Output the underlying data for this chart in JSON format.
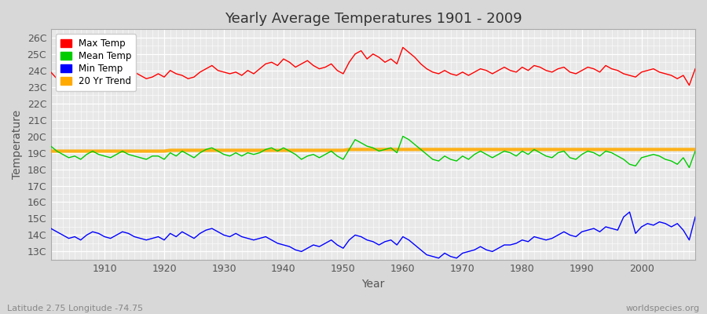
{
  "title": "Yearly Average Temperatures 1901 - 2009",
  "xlabel": "Year",
  "ylabel": "Temperature",
  "lat_lon_label": "Latitude 2.75 Longitude -74.75",
  "watermark": "worldspecies.org",
  "years": [
    1901,
    1902,
    1903,
    1904,
    1905,
    1906,
    1907,
    1908,
    1909,
    1910,
    1911,
    1912,
    1913,
    1914,
    1915,
    1916,
    1917,
    1918,
    1919,
    1920,
    1921,
    1922,
    1923,
    1924,
    1925,
    1926,
    1927,
    1928,
    1929,
    1930,
    1931,
    1932,
    1933,
    1934,
    1935,
    1936,
    1937,
    1938,
    1939,
    1940,
    1941,
    1942,
    1943,
    1944,
    1945,
    1946,
    1947,
    1948,
    1949,
    1950,
    1951,
    1952,
    1953,
    1954,
    1955,
    1956,
    1957,
    1958,
    1959,
    1960,
    1961,
    1962,
    1963,
    1964,
    1965,
    1966,
    1967,
    1968,
    1969,
    1970,
    1971,
    1972,
    1973,
    1974,
    1975,
    1976,
    1977,
    1978,
    1979,
    1980,
    1981,
    1982,
    1983,
    1984,
    1985,
    1986,
    1987,
    1988,
    1989,
    1990,
    1991,
    1992,
    1993,
    1994,
    1995,
    1996,
    1997,
    1998,
    1999,
    2000,
    2001,
    2002,
    2003,
    2004,
    2005,
    2006,
    2007,
    2008,
    2009
  ],
  "max_temp": [
    23.9,
    23.5,
    23.3,
    23.4,
    23.2,
    23.3,
    23.4,
    23.6,
    23.7,
    23.5,
    23.3,
    23.4,
    23.6,
    23.8,
    23.9,
    23.7,
    23.5,
    23.6,
    23.8,
    23.6,
    24.0,
    23.8,
    23.7,
    23.5,
    23.6,
    23.9,
    24.1,
    24.3,
    24.0,
    23.9,
    23.8,
    23.9,
    23.7,
    24.0,
    23.8,
    24.1,
    24.4,
    24.5,
    24.3,
    24.7,
    24.5,
    24.2,
    24.4,
    24.6,
    24.3,
    24.1,
    24.2,
    24.4,
    24.0,
    23.8,
    24.5,
    25.0,
    25.2,
    24.7,
    25.0,
    24.8,
    24.5,
    24.7,
    24.4,
    25.4,
    25.1,
    24.8,
    24.4,
    24.1,
    23.9,
    23.8,
    24.0,
    23.8,
    23.7,
    23.9,
    23.7,
    23.9,
    24.1,
    24.0,
    23.8,
    24.0,
    24.2,
    24.0,
    23.9,
    24.2,
    24.0,
    24.3,
    24.2,
    24.0,
    23.9,
    24.1,
    24.2,
    23.9,
    23.8,
    24.0,
    24.2,
    24.1,
    23.9,
    24.3,
    24.1,
    24.0,
    23.8,
    23.7,
    23.6,
    23.9,
    24.0,
    24.1,
    23.9,
    23.8,
    23.7,
    23.5,
    23.7,
    23.1,
    24.1
  ],
  "mean_temp": [
    19.4,
    19.1,
    18.9,
    18.7,
    18.8,
    18.6,
    18.9,
    19.1,
    18.9,
    18.8,
    18.7,
    18.9,
    19.1,
    18.9,
    18.8,
    18.7,
    18.6,
    18.8,
    18.8,
    18.6,
    19.0,
    18.8,
    19.1,
    18.9,
    18.7,
    19.0,
    19.2,
    19.3,
    19.1,
    18.9,
    18.8,
    19.0,
    18.8,
    19.0,
    18.9,
    19.0,
    19.2,
    19.3,
    19.1,
    19.3,
    19.1,
    18.9,
    18.6,
    18.8,
    18.9,
    18.7,
    18.9,
    19.1,
    18.8,
    18.6,
    19.2,
    19.8,
    19.6,
    19.4,
    19.3,
    19.1,
    19.2,
    19.3,
    19.0,
    20.0,
    19.8,
    19.5,
    19.2,
    18.9,
    18.6,
    18.5,
    18.8,
    18.6,
    18.5,
    18.8,
    18.6,
    18.9,
    19.1,
    18.9,
    18.7,
    18.9,
    19.1,
    19.0,
    18.8,
    19.1,
    18.9,
    19.2,
    19.0,
    18.8,
    18.7,
    19.0,
    19.1,
    18.7,
    18.6,
    18.9,
    19.1,
    19.0,
    18.8,
    19.1,
    19.0,
    18.8,
    18.6,
    18.3,
    18.2,
    18.7,
    18.8,
    18.9,
    18.8,
    18.6,
    18.5,
    18.3,
    18.7,
    18.1,
    19.1
  ],
  "min_temp": [
    14.4,
    14.2,
    14.0,
    13.8,
    13.9,
    13.7,
    14.0,
    14.2,
    14.1,
    13.9,
    13.8,
    14.0,
    14.2,
    14.1,
    13.9,
    13.8,
    13.7,
    13.8,
    13.9,
    13.7,
    14.1,
    13.9,
    14.2,
    14.0,
    13.8,
    14.1,
    14.3,
    14.4,
    14.2,
    14.0,
    13.9,
    14.1,
    13.9,
    13.8,
    13.7,
    13.8,
    13.9,
    13.7,
    13.5,
    13.4,
    13.3,
    13.1,
    13.0,
    13.2,
    13.4,
    13.3,
    13.5,
    13.7,
    13.4,
    13.2,
    13.7,
    14.0,
    13.9,
    13.7,
    13.6,
    13.4,
    13.6,
    13.7,
    13.4,
    13.9,
    13.7,
    13.4,
    13.1,
    12.8,
    12.7,
    12.6,
    12.9,
    12.7,
    12.6,
    12.9,
    13.0,
    13.1,
    13.3,
    13.1,
    13.0,
    13.2,
    13.4,
    13.4,
    13.5,
    13.7,
    13.6,
    13.9,
    13.8,
    13.7,
    13.8,
    14.0,
    14.2,
    14.0,
    13.9,
    14.2,
    14.3,
    14.4,
    14.2,
    14.5,
    14.4,
    14.3,
    15.1,
    15.4,
    14.1,
    14.5,
    14.7,
    14.6,
    14.8,
    14.7,
    14.5,
    14.7,
    14.3,
    13.7,
    15.1
  ],
  "trend_temp": [
    19.1,
    19.1,
    19.1,
    19.1,
    19.1,
    19.1,
    19.1,
    19.1,
    19.1,
    19.1,
    19.1,
    19.1,
    19.1,
    19.1,
    19.1,
    19.1,
    19.1,
    19.1,
    19.1,
    19.1,
    19.15,
    19.15,
    19.15,
    19.15,
    19.15,
    19.15,
    19.15,
    19.15,
    19.15,
    19.15,
    19.15,
    19.15,
    19.15,
    19.15,
    19.15,
    19.15,
    19.15,
    19.15,
    19.15,
    19.15,
    19.15,
    19.15,
    19.15,
    19.15,
    19.15,
    19.15,
    19.15,
    19.15,
    19.15,
    19.15,
    19.2,
    19.2,
    19.2,
    19.2,
    19.2,
    19.2,
    19.2,
    19.2,
    19.2,
    19.2,
    19.2,
    19.2,
    19.2,
    19.2,
    19.2,
    19.2,
    19.2,
    19.2,
    19.2,
    19.2,
    19.2,
    19.2,
    19.2,
    19.2,
    19.2,
    19.2,
    19.2,
    19.2,
    19.2,
    19.2,
    19.2,
    19.2,
    19.2,
    19.2,
    19.2,
    19.2,
    19.2,
    19.2,
    19.2,
    19.2,
    19.2,
    19.2,
    19.2,
    19.2,
    19.2,
    19.2,
    19.2,
    19.2,
    19.2,
    19.2,
    19.2,
    19.2,
    19.2,
    19.2,
    19.2,
    19.2,
    19.2,
    19.2,
    19.2
  ],
  "max_color": "#ff0000",
  "mean_color": "#00cc00",
  "min_color": "#0000ff",
  "trend_color": "#ffaa00",
  "fig_bg_color": "#d8d8d8",
  "plot_bg_color": "#e8e8e8",
  "grid_major_color": "#ffffff",
  "grid_minor_color": "#ffffff",
  "tick_color": "#555555",
  "title_color": "#333333",
  "label_color": "#555555",
  "spine_color": "#aaaaaa",
  "yticks": [
    13,
    14,
    15,
    16,
    17,
    18,
    19,
    20,
    21,
    22,
    23,
    24,
    25,
    26
  ],
  "ytick_labels": [
    "13C",
    "14C",
    "15C",
    "16C",
    "17C",
    "18C",
    "19C",
    "20C",
    "21C",
    "22C",
    "23C",
    "24C",
    "25C",
    "26C"
  ],
  "ylim": [
    12.5,
    26.5
  ],
  "xlim": [
    1901,
    2009
  ],
  "xticks": [
    1910,
    1920,
    1930,
    1940,
    1950,
    1960,
    1970,
    1980,
    1990,
    2000
  ],
  "legend_labels": [
    "Max Temp",
    "Mean Temp",
    "Min Temp",
    "20 Yr Trend"
  ]
}
